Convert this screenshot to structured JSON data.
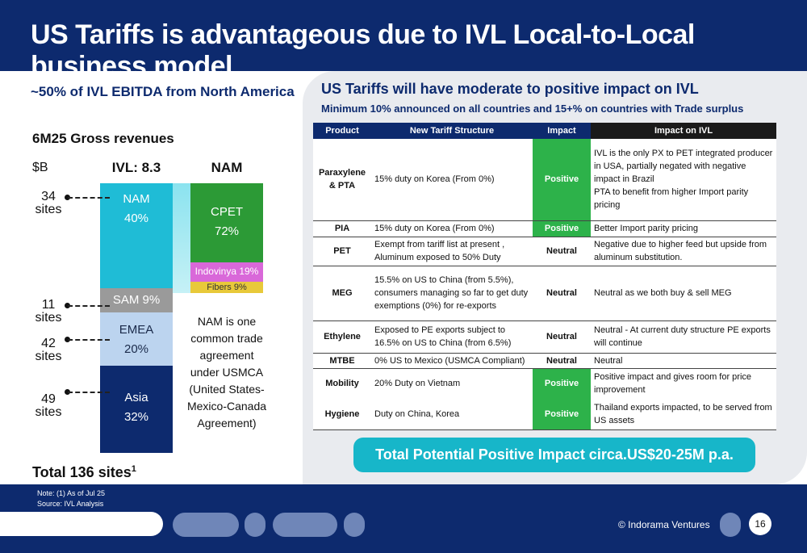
{
  "title": "US Tariffs is advantageous due to IVL Local-to-Local business model",
  "left": {
    "heading": "~50% of IVL EBITDA from North America",
    "gross_label": "6M25 Gross revenues",
    "unit": "$B",
    "ivl_label": "IVL: 8.3",
    "nam_label": "NAM",
    "regions": [
      {
        "name": "NAM",
        "pct": "40%",
        "sites": "34",
        "sites_word": "sites"
      },
      {
        "name": "SAM 9%",
        "pct": "",
        "sites": "11",
        "sites_word": "sites"
      },
      {
        "name": "EMEA",
        "pct": "20%",
        "sites": "42",
        "sites_word": "sites"
      },
      {
        "name": "Asia",
        "pct": "32%",
        "sites": "49",
        "sites_word": "sites"
      }
    ],
    "nam_breakdown": {
      "cpet_name": "CPET",
      "cpet_pct": "72%",
      "indovinya": "Indovinya 19%",
      "fibers": "Fibers 9%"
    },
    "nam_note": "NAM is one common trade agreement under USMCA (United States-Mexico-Canada Agreement)",
    "total_sites": "Total 136 sites",
    "total_sup": "1",
    "note1": "Note: (1) As of Jul 25",
    "note2": "Source: IVL Analysis"
  },
  "right": {
    "heading": "US Tariffs will have moderate to positive impact on IVL",
    "sub": "Minimum 10% announced on all countries and 15+% on countries with Trade surplus",
    "headers": [
      "Product",
      "New Tariff Structure",
      "Impact",
      "Impact on IVL"
    ],
    "rows": [
      {
        "product": "Paraxylene & PTA",
        "tariff": "15% duty on Korea (From 0%)",
        "impact": "Positive",
        "ivl": "IVL is the only PX to PET integrated producer in USA, partially negated with negative impact in Brazil\nPTA to benefit from higher Import parity pricing"
      },
      {
        "product": "PIA",
        "tariff": "15% duty on Korea (From 0%)",
        "impact": "Positive",
        "ivl": "Better Import parity pricing"
      },
      {
        "product": "PET",
        "tariff": "Exempt from tariff list at present , Aluminum exposed to 50% Duty",
        "impact": "Neutral",
        "ivl": "Negative due to higher feed but upside from aluminum substitution."
      },
      {
        "product": "MEG",
        "tariff": "15.5% on US to China (from 5.5%), consumers managing so far to get duty exemptions (0%) for re-exports",
        "impact": "Neutral",
        "ivl": "Neutral as we both buy & sell MEG"
      },
      {
        "product": "Ethylene",
        "tariff": "Exposed to PE exports subject to 16.5% on US to China (from 6.5%)",
        "impact": "Neutral",
        "ivl": "Neutral - At current duty structure PE exports will continue"
      },
      {
        "product": "MTBE",
        "tariff": "0% US to Mexico (USMCA Compliant)",
        "impact": "Neutral",
        "ivl": "Neutral"
      },
      {
        "product": "Mobility",
        "tariff": "20% Duty on Vietnam",
        "impact": "Positive",
        "ivl": "Positive impact and gives room for price improvement"
      },
      {
        "product": "Hygiene",
        "tariff": "Duty on China, Korea",
        "impact": "Positive",
        "ivl": "Thailand exports impacted, to be served from US assets"
      }
    ],
    "total_impact": "Total Potential Positive Impact circa.US$20-25M p.a."
  },
  "footer": {
    "copyright": "© Indorama Ventures",
    "page": "16"
  },
  "colors": {
    "navy": "#0d2a6e",
    "cyan": "#1fbcd6",
    "green": "#2db24a",
    "cpet_green": "#2c9a36",
    "indovinya": "#d968d9",
    "fibers": "#e8c93a"
  }
}
